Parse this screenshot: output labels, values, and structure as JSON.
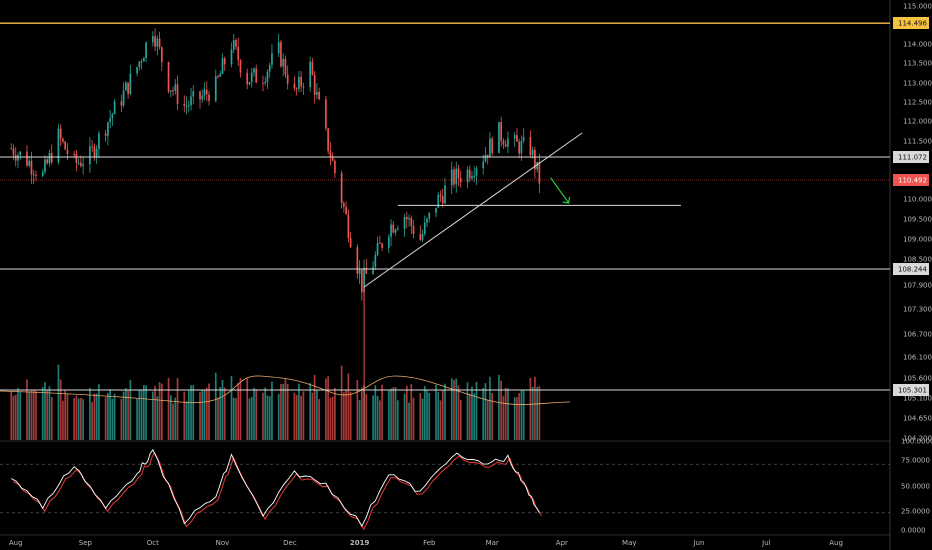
{
  "colors": {
    "background": "#000000",
    "up": "#26a69a",
    "down": "#ef5350",
    "up_volume": "#1e7f76",
    "down_volume": "#a83a38",
    "resistance": "#f5c242",
    "level_line": "#d9d9d9",
    "current_price": "#ef5350",
    "stoch_k": "#ffffff",
    "stoch_d": "#e53935",
    "arrow": "#2ecc40",
    "volume_ma": "#e8a86a",
    "axis_text": "#b8b8b8"
  },
  "price_axis": {
    "ticks": [
      "115.000",
      "114.000",
      "113.500",
      "113.000",
      "112.500",
      "112.000",
      "111.500",
      "110.000",
      "109.500",
      "109.000",
      "108.500",
      "107.900",
      "107.300",
      "106.700",
      "106.100",
      "105.600",
      "105.100",
      "104.650",
      "104.200"
    ]
  },
  "stoch_axis": {
    "ticks": [
      "100.0000",
      "75.0000",
      "50.0000",
      "25.0000",
      "0.0000"
    ]
  },
  "time_axis": {
    "labels": [
      "Aug",
      "Sep",
      "Oct",
      "Nov",
      "Dec",
      "2019",
      "Feb",
      "Mar",
      "Apr",
      "May",
      "Jun",
      "Jul",
      "Aug"
    ]
  },
  "price_tags": [
    {
      "value": "114.496",
      "style": "resistance"
    },
    {
      "value": "111.072",
      "style": "level"
    },
    {
      "value": "110.492",
      "style": "current"
    },
    {
      "value": "108.244",
      "style": "level"
    },
    {
      "value": "105.301",
      "style": "level"
    }
  ],
  "chart_data": {
    "type": "candlestick",
    "price_levels": {
      "resistance": 114.496,
      "upper_level": 111.072,
      "current_price": 110.492,
      "support_dashed_to": 109.84,
      "lower_level": 108.244
    },
    "trendline": {
      "from": {
        "date": "2019-01-03",
        "price": 107.85
      },
      "to": {
        "date": "2019-04-10",
        "price": 111.7
      }
    },
    "horizontal_segment": {
      "from_date": "2019-01-18",
      "to_date": "2019-05-24",
      "price": 109.84
    },
    "price_path": [
      [
        "2018-07-30",
        111.3
      ],
      [
        "2018-08-06",
        111.0
      ],
      [
        "2018-08-13",
        110.6
      ],
      [
        "2018-08-20",
        111.6
      ],
      [
        "2018-08-27",
        110.9
      ],
      [
        "2018-09-03",
        111.1
      ],
      [
        "2018-09-10",
        111.9
      ],
      [
        "2018-09-17",
        112.6
      ],
      [
        "2018-09-24",
        113.4
      ],
      [
        "2018-10-01",
        114.4
      ],
      [
        "2018-10-08",
        113.0
      ],
      [
        "2018-10-15",
        112.4
      ],
      [
        "2018-10-22",
        112.6
      ],
      [
        "2018-10-29",
        112.9
      ],
      [
        "2018-11-05",
        114.0
      ],
      [
        "2018-11-12",
        113.1
      ],
      [
        "2018-11-19",
        113.2
      ],
      [
        "2018-11-26",
        113.8
      ],
      [
        "2018-12-03",
        112.7
      ],
      [
        "2018-12-10",
        113.4
      ],
      [
        "2018-12-17",
        111.6
      ],
      [
        "2018-12-24",
        110.0
      ],
      [
        "2019-01-02",
        107.9
      ],
      [
        "2019-01-07",
        108.4
      ],
      [
        "2019-01-14",
        109.3
      ],
      [
        "2019-01-21",
        109.6
      ],
      [
        "2019-01-28",
        109.0
      ],
      [
        "2019-02-04",
        109.9
      ],
      [
        "2019-02-11",
        110.5
      ],
      [
        "2019-02-18",
        110.7
      ],
      [
        "2019-02-25",
        111.1
      ],
      [
        "2019-03-04",
        111.7
      ],
      [
        "2019-03-11",
        111.4
      ],
      [
        "2019-03-18",
        111.3
      ],
      [
        "2019-03-22",
        110.5
      ]
    ],
    "stochastic_path": [
      [
        "2018-07-30",
        65
      ],
      [
        "2018-08-13",
        28
      ],
      [
        "2018-08-27",
        80
      ],
      [
        "2018-09-10",
        25
      ],
      [
        "2018-09-24",
        70
      ],
      [
        "2018-10-01",
        95
      ],
      [
        "2018-10-15",
        10
      ],
      [
        "2018-10-29",
        40
      ],
      [
        "2018-11-05",
        90
      ],
      [
        "2018-11-19",
        15
      ],
      [
        "2018-12-03",
        70
      ],
      [
        "2018-12-17",
        55
      ],
      [
        "2019-01-02",
        5
      ],
      [
        "2019-01-14",
        70
      ],
      [
        "2019-01-28",
        45
      ],
      [
        "2019-02-11",
        92
      ],
      [
        "2019-02-25",
        80
      ],
      [
        "2019-03-08",
        88
      ],
      [
        "2019-03-15",
        55
      ],
      [
        "2019-03-22",
        20
      ]
    ]
  }
}
